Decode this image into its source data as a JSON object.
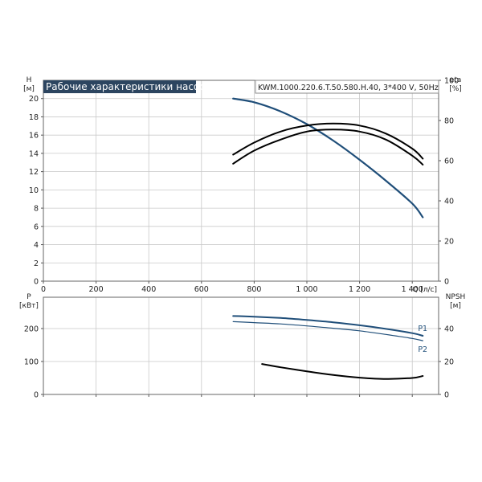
{
  "title": "Рабочие характеристики насоса",
  "model": "KWM.1000.220.6.T.50.580.H.40, 3*400 V, 50Hz",
  "colors": {
    "accent": "#1f4e79",
    "title_bg": "#2c4560",
    "eta": "#000000",
    "npsh": "#000000"
  },
  "chart_data": [
    {
      "type": "line",
      "panel": "head-efficiency",
      "xlabel": "Q [л/с]",
      "ylabel": "H\n[м]",
      "ylabel_right": "eta\n[%]",
      "xlim": [
        0,
        1500
      ],
      "ylim": [
        0,
        22
      ],
      "ylim_right": [
        0,
        100
      ],
      "x_ticks": [
        "0",
        "200",
        "400",
        "600",
        "800",
        "1 000",
        "1 200",
        "1 400"
      ],
      "y_ticks": [
        "0",
        "2",
        "4",
        "6",
        "8",
        "10",
        "12",
        "14",
        "16",
        "18",
        "20"
      ],
      "y_right_ticks": [
        "0",
        "20",
        "40",
        "60",
        "80",
        "100"
      ],
      "grid": true,
      "series": [
        {
          "axis": "left",
          "color": "#1f4e79",
          "x": [
            720,
            800,
            900,
            1000,
            1100,
            1200,
            1300,
            1400,
            1440
          ],
          "y": [
            20.0,
            19.6,
            18.6,
            17.2,
            15.4,
            13.3,
            11.0,
            8.5,
            7.0
          ]
        },
        {
          "axis": "right",
          "color": "#000000",
          "x": [
            720,
            800,
            900,
            1000,
            1100,
            1200,
            1300,
            1400,
            1440
          ],
          "y": [
            63,
            69,
            74.5,
            77.5,
            78.5,
            77.5,
            73.5,
            66,
            61
          ]
        },
        {
          "axis": "right",
          "color": "#000000",
          "x": [
            720,
            800,
            900,
            1000,
            1100,
            1200,
            1300,
            1400,
            1440
          ],
          "y": [
            58.5,
            65,
            70.5,
            74.5,
            75.5,
            74.5,
            70.5,
            62.5,
            58
          ]
        }
      ]
    },
    {
      "type": "line",
      "panel": "power-npsh",
      "ylabel": "P\n[кВт]",
      "ylabel_right": "NPSH\n[м]",
      "xlim": [
        0,
        1500
      ],
      "ylim": [
        0,
        295
      ],
      "ylim_right": [
        0,
        59
      ],
      "y_ticks": [
        "0",
        "100",
        "200"
      ],
      "y_right_ticks": [
        "0",
        "20",
        "40"
      ],
      "grid": true,
      "series": [
        {
          "name": "P1",
          "axis": "left",
          "color": "#1f4e79",
          "x": [
            720,
            800,
            900,
            1000,
            1100,
            1200,
            1300,
            1400,
            1440
          ],
          "y": [
            238,
            236,
            232,
            226,
            219,
            210,
            199,
            186,
            178
          ]
        },
        {
          "name": "P2",
          "axis": "left",
          "color": "#1f4e79",
          "x": [
            720,
            800,
            900,
            1000,
            1100,
            1200,
            1300,
            1400,
            1440
          ],
          "y": [
            221,
            218,
            214,
            208,
            201,
            193,
            182,
            170,
            163
          ]
        },
        {
          "axis": "right",
          "color": "#000000",
          "x": [
            830,
            900,
            1000,
            1100,
            1200,
            1300,
            1400,
            1440
          ],
          "y": [
            18.5,
            16.5,
            14.0,
            11.8,
            10.2,
            9.4,
            10.0,
            11.2
          ]
        }
      ]
    }
  ]
}
